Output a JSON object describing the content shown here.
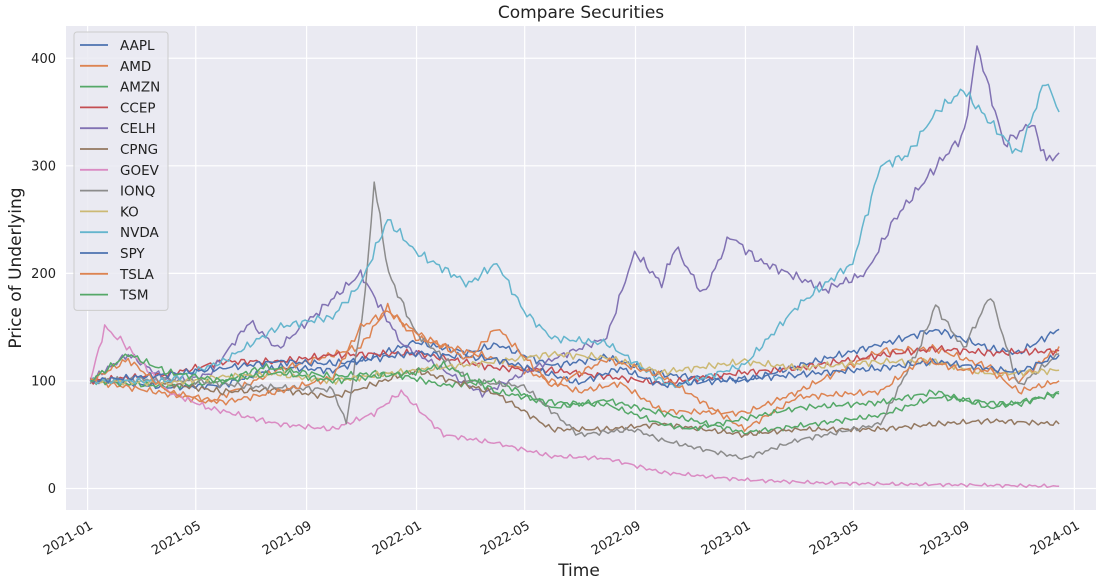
{
  "chart_data": {
    "type": "line",
    "title": "Compare Securities",
    "xlabel": "Time",
    "ylabel": "Price of Underlying",
    "xlim": [
      "2020-12-08",
      "2024-01-25"
    ],
    "ylim": [
      -20,
      430
    ],
    "x_ticks": [
      "2021-01",
      "2021-05",
      "2021-09",
      "2022-01",
      "2022-05",
      "2022-09",
      "2023-01",
      "2023-05",
      "2023-09",
      "2024-01"
    ],
    "y_ticks": [
      0,
      100,
      200,
      300,
      400
    ],
    "grid": true,
    "legend": "upper left",
    "background": "#eaeaf2",
    "series": [
      {
        "name": "AAPL",
        "color": "#4c72b0",
        "points": [
          [
            "2021-01-04",
            100
          ],
          [
            "2021-02-15",
            98
          ],
          [
            "2021-03-31",
            94
          ],
          [
            "2021-05-31",
            96
          ],
          [
            "2021-07-31",
            113
          ],
          [
            "2021-09-30",
            110
          ],
          [
            "2021-12-31",
            136
          ],
          [
            "2022-02-28",
            126
          ],
          [
            "2022-03-31",
            134
          ],
          [
            "2022-05-31",
            114
          ],
          [
            "2022-07-31",
            122
          ],
          [
            "2022-09-30",
            106
          ],
          [
            "2022-12-31",
            100
          ],
          [
            "2023-02-28",
            114
          ],
          [
            "2023-05-31",
            134
          ],
          [
            "2023-07-31",
            148
          ],
          [
            "2023-09-30",
            130
          ],
          [
            "2023-10-31",
            126
          ],
          [
            "2023-12-15",
            148
          ]
        ]
      },
      {
        "name": "AMD",
        "color": "#dd8452",
        "points": [
          [
            "2021-01-04",
            100
          ],
          [
            "2021-03-31",
            88
          ],
          [
            "2021-05-15",
            80
          ],
          [
            "2021-07-31",
            110
          ],
          [
            "2021-10-31",
            132
          ],
          [
            "2021-11-30",
            168
          ],
          [
            "2021-12-31",
            140
          ],
          [
            "2022-03-31",
            120
          ],
          [
            "2022-05-31",
            100
          ],
          [
            "2022-06-30",
            90
          ],
          [
            "2022-08-15",
            98
          ],
          [
            "2022-09-30",
            72
          ],
          [
            "2022-12-31",
            70
          ],
          [
            "2023-02-28",
            90
          ],
          [
            "2023-05-31",
            128
          ],
          [
            "2023-07-31",
            130
          ],
          [
            "2023-09-30",
            112
          ],
          [
            "2023-10-31",
            100
          ],
          [
            "2023-12-15",
            132
          ]
        ]
      },
      {
        "name": "AMZN",
        "color": "#55a868",
        "points": [
          [
            "2021-01-04",
            100
          ],
          [
            "2021-03-31",
            95
          ],
          [
            "2021-05-31",
            100
          ],
          [
            "2021-07-15",
            113
          ],
          [
            "2021-09-30",
            104
          ],
          [
            "2021-11-30",
            108
          ],
          [
            "2022-01-31",
            96
          ],
          [
            "2022-03-31",
            100
          ],
          [
            "2022-05-31",
            75
          ],
          [
            "2022-07-31",
            82
          ],
          [
            "2022-09-30",
            70
          ],
          [
            "2022-12-31",
            52
          ],
          [
            "2023-02-28",
            58
          ],
          [
            "2023-05-31",
            68
          ],
          [
            "2023-07-31",
            85
          ],
          [
            "2023-09-30",
            80
          ],
          [
            "2023-10-31",
            78
          ],
          [
            "2023-12-15",
            90
          ]
        ]
      },
      {
        "name": "CCEP",
        "color": "#c44e52",
        "points": [
          [
            "2021-01-04",
            100
          ],
          [
            "2021-03-31",
            106
          ],
          [
            "2021-05-31",
            118
          ],
          [
            "2021-07-31",
            118
          ],
          [
            "2021-09-30",
            124
          ],
          [
            "2021-12-31",
            126
          ],
          [
            "2022-03-31",
            112
          ],
          [
            "2022-05-31",
            110
          ],
          [
            "2022-07-31",
            104
          ],
          [
            "2022-09-30",
            98
          ],
          [
            "2022-12-31",
            108
          ],
          [
            "2023-02-28",
            112
          ],
          [
            "2023-05-31",
            124
          ],
          [
            "2023-07-31",
            130
          ],
          [
            "2023-09-30",
            126
          ],
          [
            "2023-12-15",
            128
          ]
        ]
      },
      {
        "name": "CELH",
        "color": "#8172b3",
        "points": [
          [
            "2021-01-04",
            100
          ],
          [
            "2021-02-15",
            125
          ],
          [
            "2021-03-31",
            100
          ],
          [
            "2021-05-15",
            105
          ],
          [
            "2021-06-30",
            155
          ],
          [
            "2021-07-31",
            130
          ],
          [
            "2021-09-15",
            165
          ],
          [
            "2021-10-31",
            200
          ],
          [
            "2021-12-15",
            135
          ],
          [
            "2022-01-31",
            110
          ],
          [
            "2022-03-15",
            88
          ],
          [
            "2022-05-31",
            120
          ],
          [
            "2022-07-31",
            140
          ],
          [
            "2022-08-31",
            220
          ],
          [
            "2022-09-30",
            190
          ],
          [
            "2022-10-15",
            225
          ],
          [
            "2022-11-15",
            180
          ],
          [
            "2022-12-15",
            235
          ],
          [
            "2023-01-15",
            212
          ],
          [
            "2023-03-31",
            185
          ],
          [
            "2023-05-15",
            200
          ],
          [
            "2023-06-15",
            250
          ],
          [
            "2023-08-01",
            300
          ],
          [
            "2023-09-01",
            330
          ],
          [
            "2023-09-15",
            412
          ],
          [
            "2023-10-15",
            320
          ],
          [
            "2023-11-15",
            340
          ],
          [
            "2023-12-01",
            305
          ],
          [
            "2023-12-15",
            312
          ]
        ]
      },
      {
        "name": "CPNG",
        "color": "#937860",
        "points": [
          [
            "2021-03-11",
            100
          ],
          [
            "2021-05-31",
            90
          ],
          [
            "2021-07-31",
            92
          ],
          [
            "2021-09-30",
            85
          ],
          [
            "2021-10-31",
            93
          ],
          [
            "2021-12-31",
            110
          ],
          [
            "2022-03-31",
            88
          ],
          [
            "2022-05-31",
            55
          ],
          [
            "2022-07-31",
            55
          ],
          [
            "2022-09-30",
            60
          ],
          [
            "2022-12-31",
            50
          ],
          [
            "2023-02-28",
            55
          ],
          [
            "2023-05-31",
            55
          ],
          [
            "2023-07-31",
            60
          ],
          [
            "2023-09-30",
            63
          ],
          [
            "2023-12-15",
            60
          ]
        ]
      },
      {
        "name": "GOEV",
        "color": "#da8bc3",
        "points": [
          [
            "2021-01-04",
            100
          ],
          [
            "2021-01-20",
            150
          ],
          [
            "2021-02-10",
            135
          ],
          [
            "2021-03-31",
            90
          ],
          [
            "2021-05-15",
            75
          ],
          [
            "2021-07-31",
            60
          ],
          [
            "2021-09-30",
            55
          ],
          [
            "2021-11-15",
            70
          ],
          [
            "2021-12-15",
            90
          ],
          [
            "2022-01-31",
            50
          ],
          [
            "2022-03-31",
            42
          ],
          [
            "2022-05-31",
            30
          ],
          [
            "2022-07-31",
            28
          ],
          [
            "2022-09-30",
            15
          ],
          [
            "2022-12-31",
            8
          ],
          [
            "2023-03-31",
            5
          ],
          [
            "2023-06-30",
            4
          ],
          [
            "2023-09-30",
            3
          ],
          [
            "2023-12-15",
            2
          ]
        ]
      },
      {
        "name": "IONQ",
        "color": "#8c8c8c",
        "points": [
          [
            "2021-01-04",
            100
          ],
          [
            "2021-03-31",
            102
          ],
          [
            "2021-06-30",
            95
          ],
          [
            "2021-09-30",
            92
          ],
          [
            "2021-10-15",
            60
          ],
          [
            "2021-11-05",
            180
          ],
          [
            "2021-11-15",
            285
          ],
          [
            "2021-12-01",
            200
          ],
          [
            "2021-12-31",
            145
          ],
          [
            "2022-02-28",
            100
          ],
          [
            "2022-04-30",
            95
          ],
          [
            "2022-06-30",
            50
          ],
          [
            "2022-08-31",
            55
          ],
          [
            "2022-09-30",
            45
          ],
          [
            "2022-12-31",
            28
          ],
          [
            "2023-02-28",
            45
          ],
          [
            "2023-05-31",
            60
          ],
          [
            "2023-07-15",
            135
          ],
          [
            "2023-07-31",
            170
          ],
          [
            "2023-08-31",
            130
          ],
          [
            "2023-09-30",
            180
          ],
          [
            "2023-10-31",
            95
          ],
          [
            "2023-12-15",
            125
          ]
        ]
      },
      {
        "name": "KO",
        "color": "#ccb974",
        "points": [
          [
            "2021-01-04",
            100
          ],
          [
            "2021-03-31",
            98
          ],
          [
            "2021-05-31",
            104
          ],
          [
            "2021-07-31",
            106
          ],
          [
            "2021-09-30",
            100
          ],
          [
            "2021-12-31",
            110
          ],
          [
            "2022-03-31",
            118
          ],
          [
            "2022-05-31",
            125
          ],
          [
            "2022-07-31",
            122
          ],
          [
            "2022-09-30",
            108
          ],
          [
            "2022-12-31",
            118
          ],
          [
            "2023-02-28",
            112
          ],
          [
            "2023-05-31",
            118
          ],
          [
            "2023-07-31",
            118
          ],
          [
            "2023-09-30",
            106
          ],
          [
            "2023-12-15",
            110
          ]
        ]
      },
      {
        "name": "NVDA",
        "color": "#64b5cd",
        "points": [
          [
            "2021-01-04",
            100
          ],
          [
            "2021-03-31",
            100
          ],
          [
            "2021-05-31",
            118
          ],
          [
            "2021-07-31",
            150
          ],
          [
            "2021-09-30",
            160
          ],
          [
            "2021-10-31",
            190
          ],
          [
            "2021-11-30",
            250
          ],
          [
            "2021-12-31",
            220
          ],
          [
            "2022-02-28",
            190
          ],
          [
            "2022-03-31",
            210
          ],
          [
            "2022-04-30",
            165
          ],
          [
            "2022-05-31",
            140
          ],
          [
            "2022-07-31",
            135
          ],
          [
            "2022-09-30",
            100
          ],
          [
            "2022-10-15",
            95
          ],
          [
            "2022-12-31",
            115
          ],
          [
            "2023-02-28",
            170
          ],
          [
            "2023-04-30",
            210
          ],
          [
            "2023-05-31",
            300
          ],
          [
            "2023-06-30",
            310
          ],
          [
            "2023-07-31",
            350
          ],
          [
            "2023-08-31",
            370
          ],
          [
            "2023-09-30",
            340
          ],
          [
            "2023-10-31",
            310
          ],
          [
            "2023-11-30",
            380
          ],
          [
            "2023-12-15",
            350
          ]
        ]
      },
      {
        "name": "SPY",
        "color": "#4c72b0",
        "points": [
          [
            "2021-01-04",
            100
          ],
          [
            "2021-03-31",
            106
          ],
          [
            "2021-05-31",
            112
          ],
          [
            "2021-07-31",
            118
          ],
          [
            "2021-09-30",
            116
          ],
          [
            "2021-12-31",
            126
          ],
          [
            "2022-03-31",
            120
          ],
          [
            "2022-05-31",
            106
          ],
          [
            "2022-06-30",
            98
          ],
          [
            "2022-08-15",
            112
          ],
          [
            "2022-09-30",
            96
          ],
          [
            "2022-12-31",
            102
          ],
          [
            "2023-02-28",
            106
          ],
          [
            "2023-05-31",
            112
          ],
          [
            "2023-07-31",
            118
          ],
          [
            "2023-10-31",
            108
          ],
          [
            "2023-12-15",
            124
          ]
        ]
      },
      {
        "name": "TSLA",
        "color": "#dd8452",
        "points": [
          [
            "2021-01-04",
            100
          ],
          [
            "2021-02-15",
            120
          ],
          [
            "2021-03-31",
            90
          ],
          [
            "2021-05-31",
            80
          ],
          [
            "2021-07-31",
            90
          ],
          [
            "2021-09-30",
            103
          ],
          [
            "2021-10-31",
            150
          ],
          [
            "2021-11-30",
            165
          ],
          [
            "2021-12-31",
            145
          ],
          [
            "2022-02-28",
            120
          ],
          [
            "2022-03-31",
            150
          ],
          [
            "2022-05-31",
            95
          ],
          [
            "2022-07-31",
            120
          ],
          [
            "2022-09-30",
            105
          ],
          [
            "2022-12-31",
            55
          ],
          [
            "2023-02-28",
            85
          ],
          [
            "2023-05-31",
            90
          ],
          [
            "2023-07-15",
            120
          ],
          [
            "2023-08-31",
            110
          ],
          [
            "2023-09-30",
            110
          ],
          [
            "2023-10-31",
            90
          ],
          [
            "2023-12-15",
            100
          ]
        ]
      },
      {
        "name": "TSM",
        "color": "#55a868",
        "points": [
          [
            "2021-01-04",
            100
          ],
          [
            "2021-02-15",
            125
          ],
          [
            "2021-03-31",
            108
          ],
          [
            "2021-05-31",
            100
          ],
          [
            "2021-07-31",
            108
          ],
          [
            "2021-09-30",
            100
          ],
          [
            "2021-12-31",
            108
          ],
          [
            "2022-01-31",
            115
          ],
          [
            "2022-03-31",
            90
          ],
          [
            "2022-05-31",
            80
          ],
          [
            "2022-07-31",
            78
          ],
          [
            "2022-09-30",
            60
          ],
          [
            "2022-10-31",
            55
          ],
          [
            "2022-12-31",
            65
          ],
          [
            "2023-02-28",
            75
          ],
          [
            "2023-05-31",
            80
          ],
          [
            "2023-07-31",
            90
          ],
          [
            "2023-09-30",
            75
          ],
          [
            "2023-12-15",
            88
          ]
        ]
      }
    ]
  }
}
